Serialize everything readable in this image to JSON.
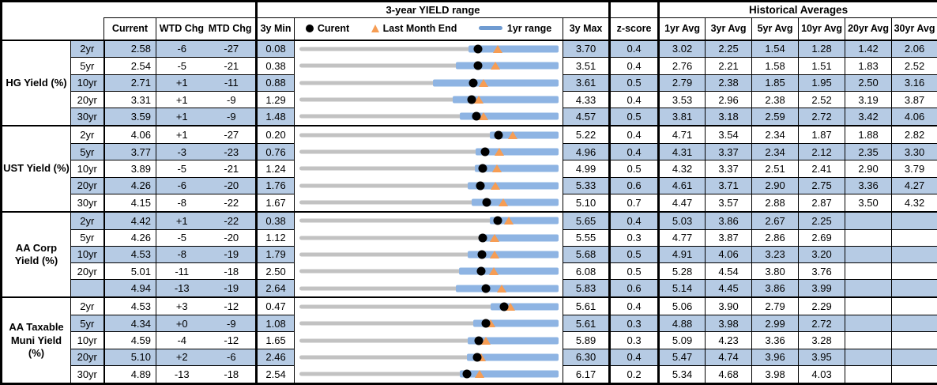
{
  "header": {
    "range_title": "3-year YIELD range",
    "hist_title": "Historical Averages",
    "col_current": "Current",
    "col_wtd": "WTD Chg",
    "col_mtd": "MTD Chg",
    "col_min": "3y Min",
    "col_max": "3y Max",
    "col_z": "z-score",
    "avg_cols": [
      "1yr Avg",
      "3yr Avg",
      "5yr Avg",
      "10yr Avg",
      "20yr Avg",
      "30yr Avg"
    ],
    "legend": {
      "current": "Curent",
      "last_month": "Last Month End",
      "range": "1yr range"
    }
  },
  "colors": {
    "band_blue": "#b6cbe4",
    "bar_blue": "#8eb4e3",
    "track_gray": "#c2c2c2",
    "marker_orange": "#f69d54",
    "marker_black": "#000000"
  },
  "chart_data": {
    "type": "table",
    "note": "Each row has an inline bullet chart: gray track = 3y min-max range, blue bar = 1yr range (estimated from pixels), black dot = current, orange triangle = last month end (current - MTD chg/100).",
    "sections": [
      {
        "label": "HG Yield (%)",
        "rows": [
          {
            "tenor": "2yr",
            "current": "2.58",
            "wtd_chg": "-6",
            "mtd_chg": "-27",
            "min_3y": "0.08",
            "max_3y": "3.70",
            "z_score": "0.4",
            "averages": [
              "3.02",
              "2.25",
              "1.54",
              "1.28",
              "1.42",
              "2.06"
            ],
            "last_month_end": 2.85,
            "range_1yr": [
              2.45,
              3.7
            ]
          },
          {
            "tenor": "5yr",
            "current": "2.54",
            "wtd_chg": "-5",
            "mtd_chg": "-21",
            "min_3y": "0.38",
            "max_3y": "3.51",
            "z_score": "0.4",
            "averages": [
              "2.76",
              "2.21",
              "1.58",
              "1.51",
              "1.83",
              "2.52"
            ],
            "last_month_end": 2.75,
            "range_1yr": [
              2.27,
              3.51
            ]
          },
          {
            "tenor": "10yr",
            "current": "2.71",
            "wtd_chg": "+1",
            "mtd_chg": "-11",
            "min_3y": "0.88",
            "max_3y": "3.61",
            "z_score": "0.5",
            "averages": [
              "2.79",
              "2.38",
              "1.85",
              "1.95",
              "2.50",
              "3.16"
            ],
            "last_month_end": 2.82,
            "range_1yr": [
              2.29,
              3.61
            ]
          },
          {
            "tenor": "20yr",
            "current": "3.31",
            "wtd_chg": "+1",
            "mtd_chg": "-9",
            "min_3y": "1.29",
            "max_3y": "4.33",
            "z_score": "0.4",
            "averages": [
              "3.53",
              "2.96",
              "2.38",
              "2.52",
              "3.19",
              "3.87"
            ],
            "last_month_end": 3.4,
            "range_1yr": [
              3.09,
              4.33
            ]
          },
          {
            "tenor": "30yr",
            "current": "3.59",
            "wtd_chg": "+1",
            "mtd_chg": "-9",
            "min_3y": "1.48",
            "max_3y": "4.57",
            "z_score": "0.5",
            "averages": [
              "3.81",
              "3.18",
              "2.59",
              "2.72",
              "3.42",
              "4.06"
            ],
            "last_month_end": 3.68,
            "range_1yr": [
              3.4,
              4.57
            ]
          }
        ]
      },
      {
        "label": "UST Yield (%)",
        "rows": [
          {
            "tenor": "2yr",
            "current": "4.06",
            "wtd_chg": "+1",
            "mtd_chg": "-27",
            "min_3y": "0.20",
            "max_3y": "5.22",
            "z_score": "0.4",
            "averages": [
              "4.71",
              "3.54",
              "2.34",
              "1.87",
              "1.88",
              "2.82"
            ],
            "last_month_end": 4.33,
            "range_1yr": [
              3.89,
              5.22
            ]
          },
          {
            "tenor": "5yr",
            "current": "3.77",
            "wtd_chg": "-3",
            "mtd_chg": "-23",
            "min_3y": "0.76",
            "max_3y": "4.96",
            "z_score": "0.4",
            "averages": [
              "4.31",
              "3.37",
              "2.34",
              "2.12",
              "2.35",
              "3.30"
            ],
            "last_month_end": 4.0,
            "range_1yr": [
              3.62,
              4.96
            ]
          },
          {
            "tenor": "10yr",
            "current": "3.89",
            "wtd_chg": "-5",
            "mtd_chg": "-21",
            "min_3y": "1.24",
            "max_3y": "4.99",
            "z_score": "0.5",
            "averages": [
              "4.32",
              "3.37",
              "2.51",
              "2.41",
              "2.90",
              "3.79"
            ],
            "last_month_end": 4.1,
            "range_1yr": [
              3.78,
              4.99
            ]
          },
          {
            "tenor": "20yr",
            "current": "4.26",
            "wtd_chg": "-6",
            "mtd_chg": "-20",
            "min_3y": "1.76",
            "max_3y": "5.33",
            "z_score": "0.6",
            "averages": [
              "4.61",
              "3.71",
              "2.90",
              "2.75",
              "3.36",
              "4.27"
            ],
            "last_month_end": 4.46,
            "range_1yr": [
              4.08,
              5.33
            ]
          },
          {
            "tenor": "30yr",
            "current": "4.15",
            "wtd_chg": "-8",
            "mtd_chg": "-22",
            "min_3y": "1.67",
            "max_3y": "5.10",
            "z_score": "0.7",
            "averages": [
              "4.47",
              "3.57",
              "2.88",
              "2.87",
              "3.50",
              "4.32"
            ],
            "last_month_end": 4.37,
            "range_1yr": [
              3.95,
              5.1
            ]
          }
        ]
      },
      {
        "label": "AA Corp Yield (%)",
        "rows": [
          {
            "tenor": "2yr",
            "current": "4.42",
            "wtd_chg": "+1",
            "mtd_chg": "-22",
            "min_3y": "0.38",
            "max_3y": "5.65",
            "z_score": "0.4",
            "averages": [
              "5.03",
              "3.86",
              "2.67",
              "2.25",
              "",
              ""
            ],
            "last_month_end": 4.64,
            "range_1yr": [
              4.25,
              5.65
            ]
          },
          {
            "tenor": "5yr",
            "current": "4.26",
            "wtd_chg": "-5",
            "mtd_chg": "-20",
            "min_3y": "1.12",
            "max_3y": "5.55",
            "z_score": "0.3",
            "averages": [
              "4.77",
              "3.87",
              "2.86",
              "2.69",
              "",
              ""
            ],
            "last_month_end": 4.46,
            "range_1yr": [
              4.19,
              5.55
            ]
          },
          {
            "tenor": "10yr",
            "current": "4.53",
            "wtd_chg": "-8",
            "mtd_chg": "-19",
            "min_3y": "1.79",
            "max_3y": "5.68",
            "z_score": "0.5",
            "averages": [
              "4.91",
              "4.06",
              "3.23",
              "3.20",
              "",
              ""
            ],
            "last_month_end": 4.72,
            "range_1yr": [
              4.32,
              5.68
            ]
          },
          {
            "tenor": "20yr",
            "current": "5.01",
            "wtd_chg": "-11",
            "mtd_chg": "-18",
            "min_3y": "2.50",
            "max_3y": "6.08",
            "z_score": "0.5",
            "averages": [
              "5.28",
              "4.54",
              "3.80",
              "3.76",
              "",
              ""
            ],
            "last_month_end": 5.19,
            "range_1yr": [
              4.71,
              6.08
            ]
          },
          {
            "tenor": "",
            "current": "4.94",
            "wtd_chg": "-13",
            "mtd_chg": "-19",
            "min_3y": "2.64",
            "max_3y": "5.83",
            "z_score": "0.6",
            "averages": [
              "5.14",
              "4.45",
              "3.86",
              "3.99",
              "",
              ""
            ],
            "last_month_end": 5.13,
            "range_1yr": [
              4.57,
              5.83
            ]
          }
        ]
      },
      {
        "label": "AA Taxable Muni Yield (%)",
        "rows": [
          {
            "tenor": "2yr",
            "current": "4.53",
            "wtd_chg": "+3",
            "mtd_chg": "-12",
            "min_3y": "0.47",
            "max_3y": "5.61",
            "z_score": "0.4",
            "averages": [
              "5.06",
              "3.90",
              "2.79",
              "2.29",
              "",
              ""
            ],
            "last_month_end": 4.65,
            "range_1yr": [
              4.27,
              5.61
            ]
          },
          {
            "tenor": "5yr",
            "current": "4.34",
            "wtd_chg": "+0",
            "mtd_chg": "-9",
            "min_3y": "1.08",
            "max_3y": "5.61",
            "z_score": "0.3",
            "averages": [
              "4.88",
              "3.98",
              "2.99",
              "2.72",
              "",
              ""
            ],
            "last_month_end": 4.43,
            "range_1yr": [
              4.12,
              5.61
            ]
          },
          {
            "tenor": "10yr",
            "current": "4.59",
            "wtd_chg": "-4",
            "mtd_chg": "-12",
            "min_3y": "1.65",
            "max_3y": "5.89",
            "z_score": "0.3",
            "averages": [
              "5.09",
              "4.23",
              "3.36",
              "3.28",
              "",
              ""
            ],
            "last_month_end": 4.71,
            "range_1yr": [
              4.41,
              5.89
            ]
          },
          {
            "tenor": "20yr",
            "current": "5.10",
            "wtd_chg": "+2",
            "mtd_chg": "-6",
            "min_3y": "2.46",
            "max_3y": "6.30",
            "z_score": "0.4",
            "averages": [
              "5.47",
              "4.74",
              "3.96",
              "3.95",
              "",
              ""
            ],
            "last_month_end": 5.16,
            "range_1yr": [
              4.95,
              6.3
            ]
          },
          {
            "tenor": "30yr",
            "current": "4.89",
            "wtd_chg": "-13",
            "mtd_chg": "-18",
            "min_3y": "2.54",
            "max_3y": "6.17",
            "z_score": "0.2",
            "averages": [
              "5.34",
              "4.68",
              "3.98",
              "4.03",
              "",
              ""
            ],
            "last_month_end": 5.07,
            "range_1yr": [
              4.79,
              6.17
            ]
          }
        ]
      }
    ]
  }
}
